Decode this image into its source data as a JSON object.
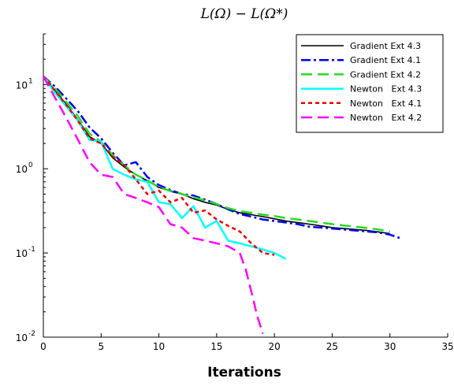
{
  "chart_data": {
    "type": "line",
    "title": "L(Ω) − L(Ω*)",
    "xlabel": "Iterations",
    "ylabel": "",
    "xlim": [
      0,
      35
    ],
    "ylim": [
      0.01,
      40
    ],
    "yscale": "log",
    "xticks": [
      0,
      5,
      10,
      15,
      20,
      25,
      30,
      35
    ],
    "yticks": [
      {
        "value": 0.01,
        "base": "10",
        "exp": "-2"
      },
      {
        "value": 0.1,
        "base": "10",
        "exp": "-1"
      },
      {
        "value": 1,
        "base": "10",
        "exp": "0"
      },
      {
        "value": 10,
        "base": "10",
        "exp": "1"
      }
    ],
    "grid": false,
    "legend_position": "top-right",
    "series": [
      {
        "name": "Gradient Ext 4.3",
        "color": "#000000",
        "dash": "solid",
        "x": [
          0,
          1,
          2,
          3,
          4,
          5,
          6,
          7,
          8,
          9,
          10,
          11,
          12,
          13,
          14,
          15,
          16,
          17,
          18,
          19,
          20,
          21,
          22,
          23,
          24,
          25,
          26,
          27,
          28,
          29,
          30
        ],
        "y": [
          12.5,
          8.5,
          5.8,
          3.8,
          2.4,
          2.0,
          1.35,
          1.05,
          0.85,
          0.72,
          0.6,
          0.54,
          0.5,
          0.44,
          0.4,
          0.37,
          0.33,
          0.3,
          0.285,
          0.27,
          0.255,
          0.24,
          0.23,
          0.22,
          0.21,
          0.2,
          0.195,
          0.19,
          0.185,
          0.178,
          0.17
        ]
      },
      {
        "name": "Gradient Ext 4.1",
        "color": "#0000ee",
        "dash": "dashdot",
        "x": [
          0,
          1,
          2,
          3,
          4,
          5,
          6,
          7,
          8,
          9,
          10,
          11,
          12,
          13,
          14,
          15,
          16,
          17,
          18,
          19,
          20,
          21,
          22,
          23,
          24,
          25,
          26,
          27,
          28,
          29,
          30,
          31
        ],
        "y": [
          12.5,
          9.5,
          6.8,
          4.8,
          3.1,
          2.3,
          1.55,
          1.1,
          1.2,
          0.8,
          0.64,
          0.56,
          0.5,
          0.48,
          0.43,
          0.38,
          0.33,
          0.29,
          0.27,
          0.25,
          0.24,
          0.23,
          0.22,
          0.205,
          0.2,
          0.195,
          0.19,
          0.185,
          0.18,
          0.175,
          0.165,
          0.148
        ]
      },
      {
        "name": "Gradient Ext 4.2",
        "color": "#22dd22",
        "dash": "longdash",
        "x": [
          0,
          1,
          2,
          3,
          4,
          5,
          6,
          7,
          8,
          9,
          10,
          11,
          12,
          13,
          14,
          15,
          16,
          17,
          18,
          19,
          20,
          21,
          22,
          23,
          24,
          25,
          26,
          27,
          28,
          29,
          30
        ],
        "y": [
          12.5,
          9.0,
          6.2,
          4.2,
          2.6,
          2.1,
          1.45,
          1.1,
          0.85,
          0.73,
          0.6,
          0.55,
          0.5,
          0.46,
          0.42,
          0.38,
          0.34,
          0.315,
          0.3,
          0.285,
          0.275,
          0.26,
          0.25,
          0.24,
          0.23,
          0.22,
          0.212,
          0.205,
          0.198,
          0.19,
          0.18
        ]
      },
      {
        "name": "Newton   Ext 4.3",
        "color": "#00ffff",
        "dash": "solid",
        "x": [
          0,
          1,
          2,
          3,
          4,
          5,
          6,
          7,
          8,
          9,
          10,
          11,
          12,
          13,
          14,
          15,
          16,
          17,
          18,
          19,
          20,
          21
        ],
        "y": [
          12.5,
          8.0,
          5.5,
          3.7,
          2.2,
          2.1,
          1.0,
          0.85,
          0.75,
          0.7,
          0.4,
          0.38,
          0.26,
          0.36,
          0.2,
          0.24,
          0.14,
          0.13,
          0.12,
          0.11,
          0.1,
          0.085
        ]
      },
      {
        "name": "Newton   Ext 4.1",
        "color": "#ee0000",
        "dash": "dotted",
        "x": [
          0,
          1,
          2,
          3,
          4,
          5,
          6,
          7,
          8,
          9,
          10,
          11,
          12,
          13,
          14,
          15,
          16,
          17,
          18,
          19,
          20
        ],
        "y": [
          12.5,
          8.5,
          5.7,
          3.7,
          2.3,
          2.0,
          1.4,
          1.1,
          0.75,
          0.5,
          0.55,
          0.4,
          0.45,
          0.3,
          0.32,
          0.25,
          0.21,
          0.18,
          0.13,
          0.1,
          0.095
        ]
      },
      {
        "name": "Newton   Ext 4.2",
        "color": "#ff00ff",
        "dash": "longdash",
        "x": [
          0,
          1,
          2,
          3,
          4,
          5,
          6,
          7,
          8,
          9,
          10,
          11,
          12,
          13,
          14,
          15,
          16,
          17,
          17.5,
          18,
          18.5,
          19
        ],
        "y": [
          12.5,
          7.0,
          4.0,
          2.2,
          1.2,
          0.85,
          0.8,
          0.5,
          0.45,
          0.4,
          0.35,
          0.22,
          0.2,
          0.15,
          0.14,
          0.13,
          0.12,
          0.1,
          0.065,
          0.035,
          0.018,
          0.011
        ]
      }
    ]
  }
}
